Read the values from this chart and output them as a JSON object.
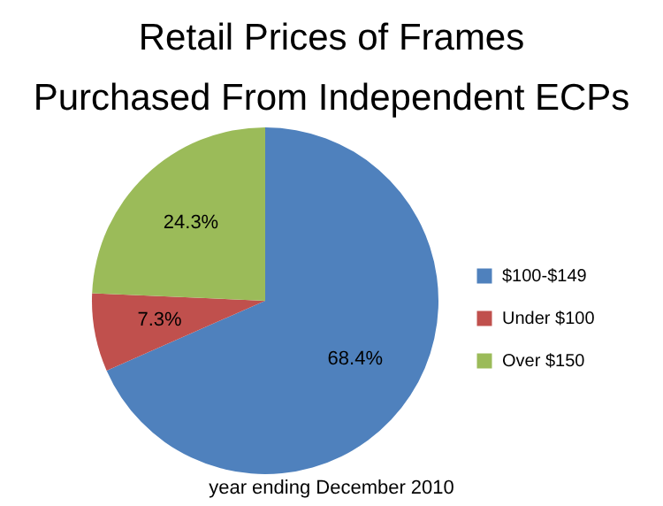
{
  "chart_data": {
    "type": "pie",
    "title": "Retail Prices of Frames\nPurchased From Independent ECPs",
    "categories": [
      "$100-$149",
      "Under $100",
      "Over $150"
    ],
    "values": [
      68.4,
      7.3,
      24.3
    ],
    "colors": [
      "#4f81bd",
      "#c0504d",
      "#9bbb59"
    ],
    "value_labels": [
      "68.4%",
      "7.3%",
      "24.3%"
    ],
    "legend": "right",
    "annotations": [
      "year ending December 2010"
    ]
  }
}
